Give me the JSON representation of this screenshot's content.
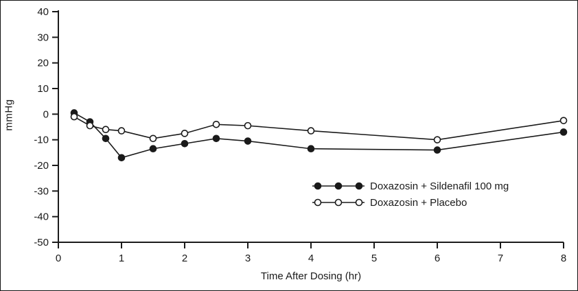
{
  "chart_data": {
    "type": "line",
    "title": "",
    "xlabel": "Time After Dosing (hr)",
    "ylabel": "mmHg",
    "xlim": [
      0,
      8
    ],
    "ylim": [
      -50,
      40
    ],
    "xticks": [
      0,
      1,
      2,
      3,
      4,
      5,
      6,
      7,
      8
    ],
    "yticks": [
      40,
      30,
      20,
      10,
      0,
      -10,
      -20,
      -30,
      -40,
      -50
    ],
    "grid": false,
    "legend_position": "lower-right-inside",
    "line_color": "#1a1a1a",
    "x": [
      0.25,
      0.5,
      0.75,
      1,
      1.5,
      2,
      2.5,
      3,
      4,
      6,
      8
    ],
    "series": [
      {
        "name": "Doxazosin + Sildenafil 100 mg",
        "marker": "filled-circle",
        "values": [
          0.5,
          -3,
          -9.5,
          -17,
          -13.5,
          -11.5,
          -9.5,
          -10.5,
          -13.5,
          -14,
          -7
        ]
      },
      {
        "name": "Doxazosin + Placebo",
        "marker": "open-circle",
        "values": [
          -1,
          -4.5,
          -6,
          -6.5,
          -9.5,
          -7.5,
          -4,
          -4.5,
          -6.5,
          -10,
          -2.5
        ]
      }
    ]
  }
}
